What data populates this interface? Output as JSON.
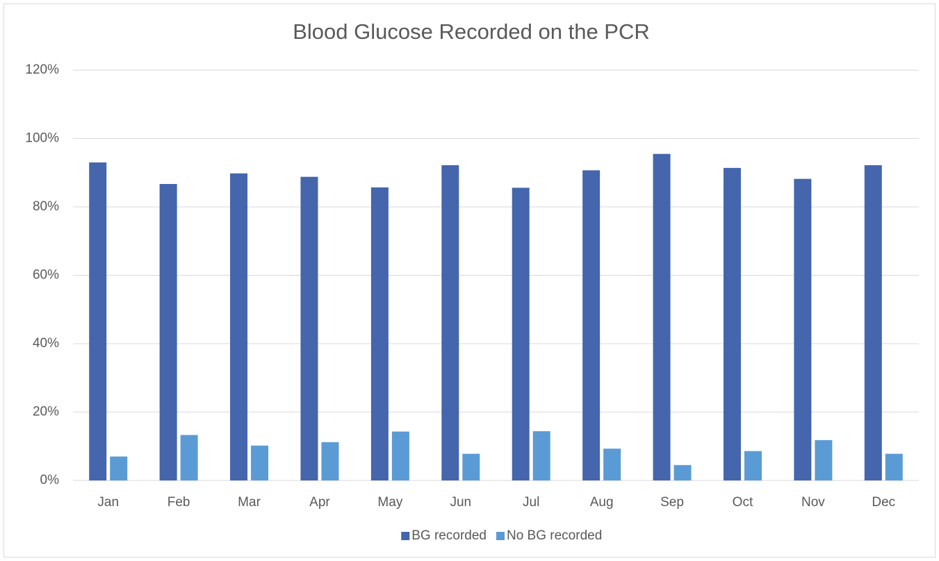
{
  "chart_data": {
    "type": "bar",
    "title": "Blood Glucose Recorded on the PCR",
    "categories": [
      "Jan",
      "Feb",
      "Mar",
      "Apr",
      "May",
      "Jun",
      "Jul",
      "Aug",
      "Sep",
      "Oct",
      "Nov",
      "Dec"
    ],
    "series": [
      {
        "name": "BG recorded",
        "color": "#4565ad",
        "values": [
          93,
          86.7,
          89.8,
          88.8,
          85.7,
          92.2,
          85.6,
          90.7,
          95.5,
          91.4,
          88.2,
          92.2
        ]
      },
      {
        "name": "No BG recorded",
        "color": "#5b9bd5",
        "values": [
          7,
          13.3,
          10.2,
          11.2,
          14.3,
          7.8,
          14.4,
          9.3,
          4.5,
          8.6,
          11.8,
          7.8
        ]
      }
    ],
    "ylim": [
      0,
      120
    ],
    "yticks": [
      {
        "value": 0,
        "label": "0%"
      },
      {
        "value": 20,
        "label": "20%"
      },
      {
        "value": 40,
        "label": "40%"
      },
      {
        "value": 60,
        "label": "60%"
      },
      {
        "value": 80,
        "label": "80%"
      },
      {
        "value": 100,
        "label": "100%"
      },
      {
        "value": 120,
        "label": "120%"
      }
    ],
    "grid": true,
    "legend": "bottom"
  }
}
